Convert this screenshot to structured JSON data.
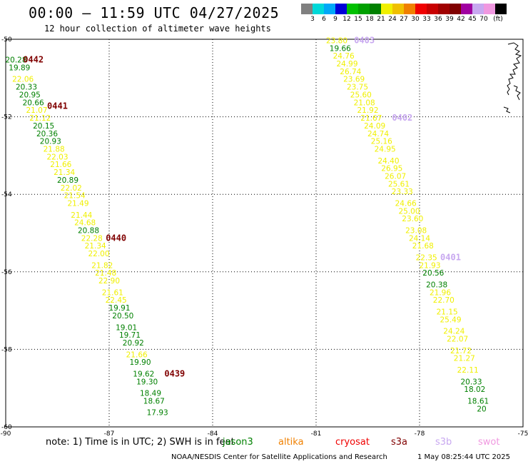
{
  "header": {
    "title": "00:00 – 11:59 UTC 04/27/2025",
    "subtitle": "12 hour collection of altimeter wave heights"
  },
  "scale": {
    "unit": "(ft)",
    "labels": [
      "3",
      "6",
      "9",
      "12",
      "15",
      "18",
      "21",
      "24",
      "27",
      "30",
      "33",
      "36",
      "39",
      "42",
      "45",
      "70"
    ],
    "colors": [
      "#808080",
      "#00d8d8",
      "#00a8f8",
      "#0000d8",
      "#00c000",
      "#00a000",
      "#008000",
      "#f0f000",
      "#f0c000",
      "#f08000",
      "#f00000",
      "#c80000",
      "#a00000",
      "#800000",
      "#a000a0",
      "#c8a8f0",
      "#f098e0",
      "#000000"
    ]
  },
  "footer": {
    "note": "note: 1) Time is in UTC; 2) SWH is in feet",
    "credit": "NOAA/NESDIS Center for Satellite Applications and Research",
    "timestamp": "1 May 08:25:44 UTC 2025",
    "legend": [
      {
        "name": "jason3",
        "color": "#008000"
      },
      {
        "name": "altika",
        "color": "#f08000"
      },
      {
        "name": "cryosat",
        "color": "#f00000"
      },
      {
        "name": "s3a",
        "color": "#800000"
      },
      {
        "name": "s3b",
        "color": "#c8a8f0"
      },
      {
        "name": "swot",
        "color": "#f098e0"
      }
    ]
  },
  "chart_data": {
    "type": "scatter",
    "xlim": [
      -90,
      -75
    ],
    "ylim": [
      -60,
      -50
    ],
    "xticks": [
      "-90",
      "-87",
      "-84",
      "-81",
      "-78",
      "-75"
    ],
    "yticks": [
      "-50",
      "-52",
      "-54",
      "-56",
      "-58",
      "-60"
    ],
    "grid": true,
    "colors": {
      "yellow": "#f0f000",
      "green": "#008000",
      "label": "#800000",
      "label_s3b": "#c8a8f0"
    },
    "pass_labels": [
      {
        "text": "0442",
        "lon": -89.2,
        "lat": -50.6,
        "color": "label"
      },
      {
        "text": "0441",
        "lon": -88.5,
        "lat": -51.8,
        "color": "label"
      },
      {
        "text": "0440",
        "lon": -86.8,
        "lat": -55.2,
        "color": "label"
      },
      {
        "text": "0439",
        "lon": -85.1,
        "lat": -58.7,
        "color": "label"
      },
      {
        "text": "0403",
        "lon": -79.6,
        "lat": -50.1,
        "color": "label_s3b"
      },
      {
        "text": "0402",
        "lon": -78.5,
        "lat": -52.1,
        "color": "label_s3b"
      },
      {
        "text": "0401",
        "lon": -77.1,
        "lat": -55.7,
        "color": "label_s3b"
      }
    ],
    "points": [
      {
        "lon": -89.7,
        "lat": -50.6,
        "v": "20.28",
        "c": "green"
      },
      {
        "lon": -89.6,
        "lat": -50.8,
        "v": "19.89",
        "c": "green"
      },
      {
        "lon": -89.5,
        "lat": -51.1,
        "v": "22.06",
        "c": "yellow"
      },
      {
        "lon": -89.4,
        "lat": -51.3,
        "v": "20.33",
        "c": "green"
      },
      {
        "lon": -89.3,
        "lat": -51.5,
        "v": "20.95",
        "c": "green"
      },
      {
        "lon": -89.2,
        "lat": -51.7,
        "v": "20.66",
        "c": "green"
      },
      {
        "lon": -89.1,
        "lat": -51.9,
        "v": "21.07",
        "c": "yellow"
      },
      {
        "lon": -89.0,
        "lat": -52.1,
        "v": "21.12",
        "c": "yellow"
      },
      {
        "lon": -88.9,
        "lat": -52.3,
        "v": "20.15",
        "c": "green"
      },
      {
        "lon": -88.8,
        "lat": -52.5,
        "v": "20.36",
        "c": "green"
      },
      {
        "lon": -88.7,
        "lat": -52.7,
        "v": "20.93",
        "c": "green"
      },
      {
        "lon": -88.6,
        "lat": -52.9,
        "v": "21.88",
        "c": "yellow"
      },
      {
        "lon": -88.5,
        "lat": -53.1,
        "v": "22.03",
        "c": "yellow"
      },
      {
        "lon": -88.4,
        "lat": -53.3,
        "v": "21.66",
        "c": "yellow"
      },
      {
        "lon": -88.3,
        "lat": -53.5,
        "v": "21.34",
        "c": "yellow"
      },
      {
        "lon": -88.2,
        "lat": -53.7,
        "v": "20.89",
        "c": "green"
      },
      {
        "lon": -88.1,
        "lat": -53.9,
        "v": "22.02",
        "c": "yellow"
      },
      {
        "lon": -88.0,
        "lat": -54.1,
        "v": "21.54",
        "c": "yellow"
      },
      {
        "lon": -87.9,
        "lat": -54.3,
        "v": "21.49",
        "c": "yellow"
      },
      {
        "lon": -87.8,
        "lat": -54.6,
        "v": "21.44",
        "c": "yellow"
      },
      {
        "lon": -87.7,
        "lat": -54.8,
        "v": "24.68",
        "c": "yellow"
      },
      {
        "lon": -87.6,
        "lat": -55.0,
        "v": "20.88",
        "c": "green"
      },
      {
        "lon": -87.5,
        "lat": -55.2,
        "v": "22.28",
        "c": "yellow"
      },
      {
        "lon": -87.4,
        "lat": -55.4,
        "v": "21.34",
        "c": "yellow"
      },
      {
        "lon": -87.3,
        "lat": -55.6,
        "v": "22.00",
        "c": "yellow"
      },
      {
        "lon": -87.2,
        "lat": -55.9,
        "v": "21.82",
        "c": "yellow"
      },
      {
        "lon": -87.1,
        "lat": -56.1,
        "v": "21.48",
        "c": "yellow"
      },
      {
        "lon": -87.0,
        "lat": -56.3,
        "v": "22.90",
        "c": "yellow"
      },
      {
        "lon": -86.9,
        "lat": -56.6,
        "v": "21.61",
        "c": "yellow"
      },
      {
        "lon": -86.8,
        "lat": -56.8,
        "v": "22.45",
        "c": "yellow"
      },
      {
        "lon": -86.7,
        "lat": -57.0,
        "v": "19.91",
        "c": "green"
      },
      {
        "lon": -86.6,
        "lat": -57.2,
        "v": "20.50",
        "c": "green"
      },
      {
        "lon": -86.5,
        "lat": -57.5,
        "v": "19.01",
        "c": "green"
      },
      {
        "lon": -86.4,
        "lat": -57.7,
        "v": "19.71",
        "c": "green"
      },
      {
        "lon": -86.3,
        "lat": -57.9,
        "v": "20.92",
        "c": "green"
      },
      {
        "lon": -86.2,
        "lat": -58.2,
        "v": "21.66",
        "c": "yellow"
      },
      {
        "lon": -86.1,
        "lat": -58.4,
        "v": "19.90",
        "c": "green"
      },
      {
        "lon": -86.0,
        "lat": -58.7,
        "v": "19.62",
        "c": "green"
      },
      {
        "lon": -85.9,
        "lat": -58.9,
        "v": "19.30",
        "c": "green"
      },
      {
        "lon": -85.8,
        "lat": -59.2,
        "v": "18.49",
        "c": "green"
      },
      {
        "lon": -85.7,
        "lat": -59.4,
        "v": "18.67",
        "c": "green"
      },
      {
        "lon": -85.6,
        "lat": -59.7,
        "v": "17.93",
        "c": "green"
      },
      {
        "lon": -80.4,
        "lat": -50.1,
        "v": "23.80",
        "c": "yellow"
      },
      {
        "lon": -80.3,
        "lat": -50.3,
        "v": "19.66",
        "c": "green"
      },
      {
        "lon": -80.2,
        "lat": -50.5,
        "v": "24.76",
        "c": "yellow"
      },
      {
        "lon": -80.1,
        "lat": -50.7,
        "v": "24.99",
        "c": "yellow"
      },
      {
        "lon": -80.0,
        "lat": -50.9,
        "v": "26.74",
        "c": "yellow"
      },
      {
        "lon": -79.9,
        "lat": -51.1,
        "v": "23.69",
        "c": "yellow"
      },
      {
        "lon": -79.8,
        "lat": -51.3,
        "v": "23.75",
        "c": "yellow"
      },
      {
        "lon": -79.7,
        "lat": -51.5,
        "v": "25.60",
        "c": "yellow"
      },
      {
        "lon": -79.6,
        "lat": -51.7,
        "v": "21.08",
        "c": "yellow"
      },
      {
        "lon": -79.5,
        "lat": -51.9,
        "v": "21.92",
        "c": "yellow"
      },
      {
        "lon": -79.4,
        "lat": -52.1,
        "v": "21.67",
        "c": "yellow"
      },
      {
        "lon": -79.3,
        "lat": -52.3,
        "v": "24.09",
        "c": "yellow"
      },
      {
        "lon": -79.2,
        "lat": -52.5,
        "v": "24.74",
        "c": "yellow"
      },
      {
        "lon": -79.1,
        "lat": -52.7,
        "v": "25.16",
        "c": "yellow"
      },
      {
        "lon": -79.0,
        "lat": -52.9,
        "v": "24.95",
        "c": "yellow"
      },
      {
        "lon": -78.9,
        "lat": -53.2,
        "v": "24.40",
        "c": "yellow"
      },
      {
        "lon": -78.8,
        "lat": -53.4,
        "v": "26.95",
        "c": "yellow"
      },
      {
        "lon": -78.7,
        "lat": -53.6,
        "v": "26.07",
        "c": "yellow"
      },
      {
        "lon": -78.6,
        "lat": -53.8,
        "v": "25.61",
        "c": "yellow"
      },
      {
        "lon": -78.5,
        "lat": -54.0,
        "v": "23.33",
        "c": "yellow"
      },
      {
        "lon": -78.4,
        "lat": -54.3,
        "v": "24.66",
        "c": "yellow"
      },
      {
        "lon": -78.3,
        "lat": -54.5,
        "v": "25.00",
        "c": "yellow"
      },
      {
        "lon": -78.2,
        "lat": -54.7,
        "v": "23.60",
        "c": "yellow"
      },
      {
        "lon": -78.1,
        "lat": -55.0,
        "v": "23.08",
        "c": "yellow"
      },
      {
        "lon": -78.0,
        "lat": -55.2,
        "v": "24.14",
        "c": "yellow"
      },
      {
        "lon": -77.9,
        "lat": -55.4,
        "v": "21.68",
        "c": "yellow"
      },
      {
        "lon": -77.8,
        "lat": -55.7,
        "v": "22.35",
        "c": "yellow"
      },
      {
        "lon": -77.7,
        "lat": -55.9,
        "v": "21.93",
        "c": "yellow"
      },
      {
        "lon": -77.6,
        "lat": -56.1,
        "v": "20.56",
        "c": "green"
      },
      {
        "lon": -77.5,
        "lat": -56.4,
        "v": "20.38",
        "c": "green"
      },
      {
        "lon": -77.4,
        "lat": -56.6,
        "v": "21.96",
        "c": "yellow"
      },
      {
        "lon": -77.3,
        "lat": -56.8,
        "v": "22.70",
        "c": "yellow"
      },
      {
        "lon": -77.2,
        "lat": -57.1,
        "v": "21.15",
        "c": "yellow"
      },
      {
        "lon": -77.1,
        "lat": -57.3,
        "v": "25.49",
        "c": "yellow"
      },
      {
        "lon": -77.0,
        "lat": -57.6,
        "v": "24.24",
        "c": "yellow"
      },
      {
        "lon": -76.9,
        "lat": -57.8,
        "v": "22.07",
        "c": "yellow"
      },
      {
        "lon": -76.8,
        "lat": -58.1,
        "v": "21.72",
        "c": "yellow"
      },
      {
        "lon": -76.7,
        "lat": -58.3,
        "v": "21.27",
        "c": "yellow"
      },
      {
        "lon": -76.6,
        "lat": -58.6,
        "v": "22.11",
        "c": "yellow"
      },
      {
        "lon": -76.5,
        "lat": -58.9,
        "v": "20.33",
        "c": "green"
      },
      {
        "lon": -76.4,
        "lat": -59.1,
        "v": "18.02",
        "c": "green"
      },
      {
        "lon": -76.3,
        "lat": -59.4,
        "v": "18.61",
        "c": "green"
      },
      {
        "lon": -76.2,
        "lat": -59.6,
        "v": "20",
        "c": "green"
      }
    ]
  }
}
